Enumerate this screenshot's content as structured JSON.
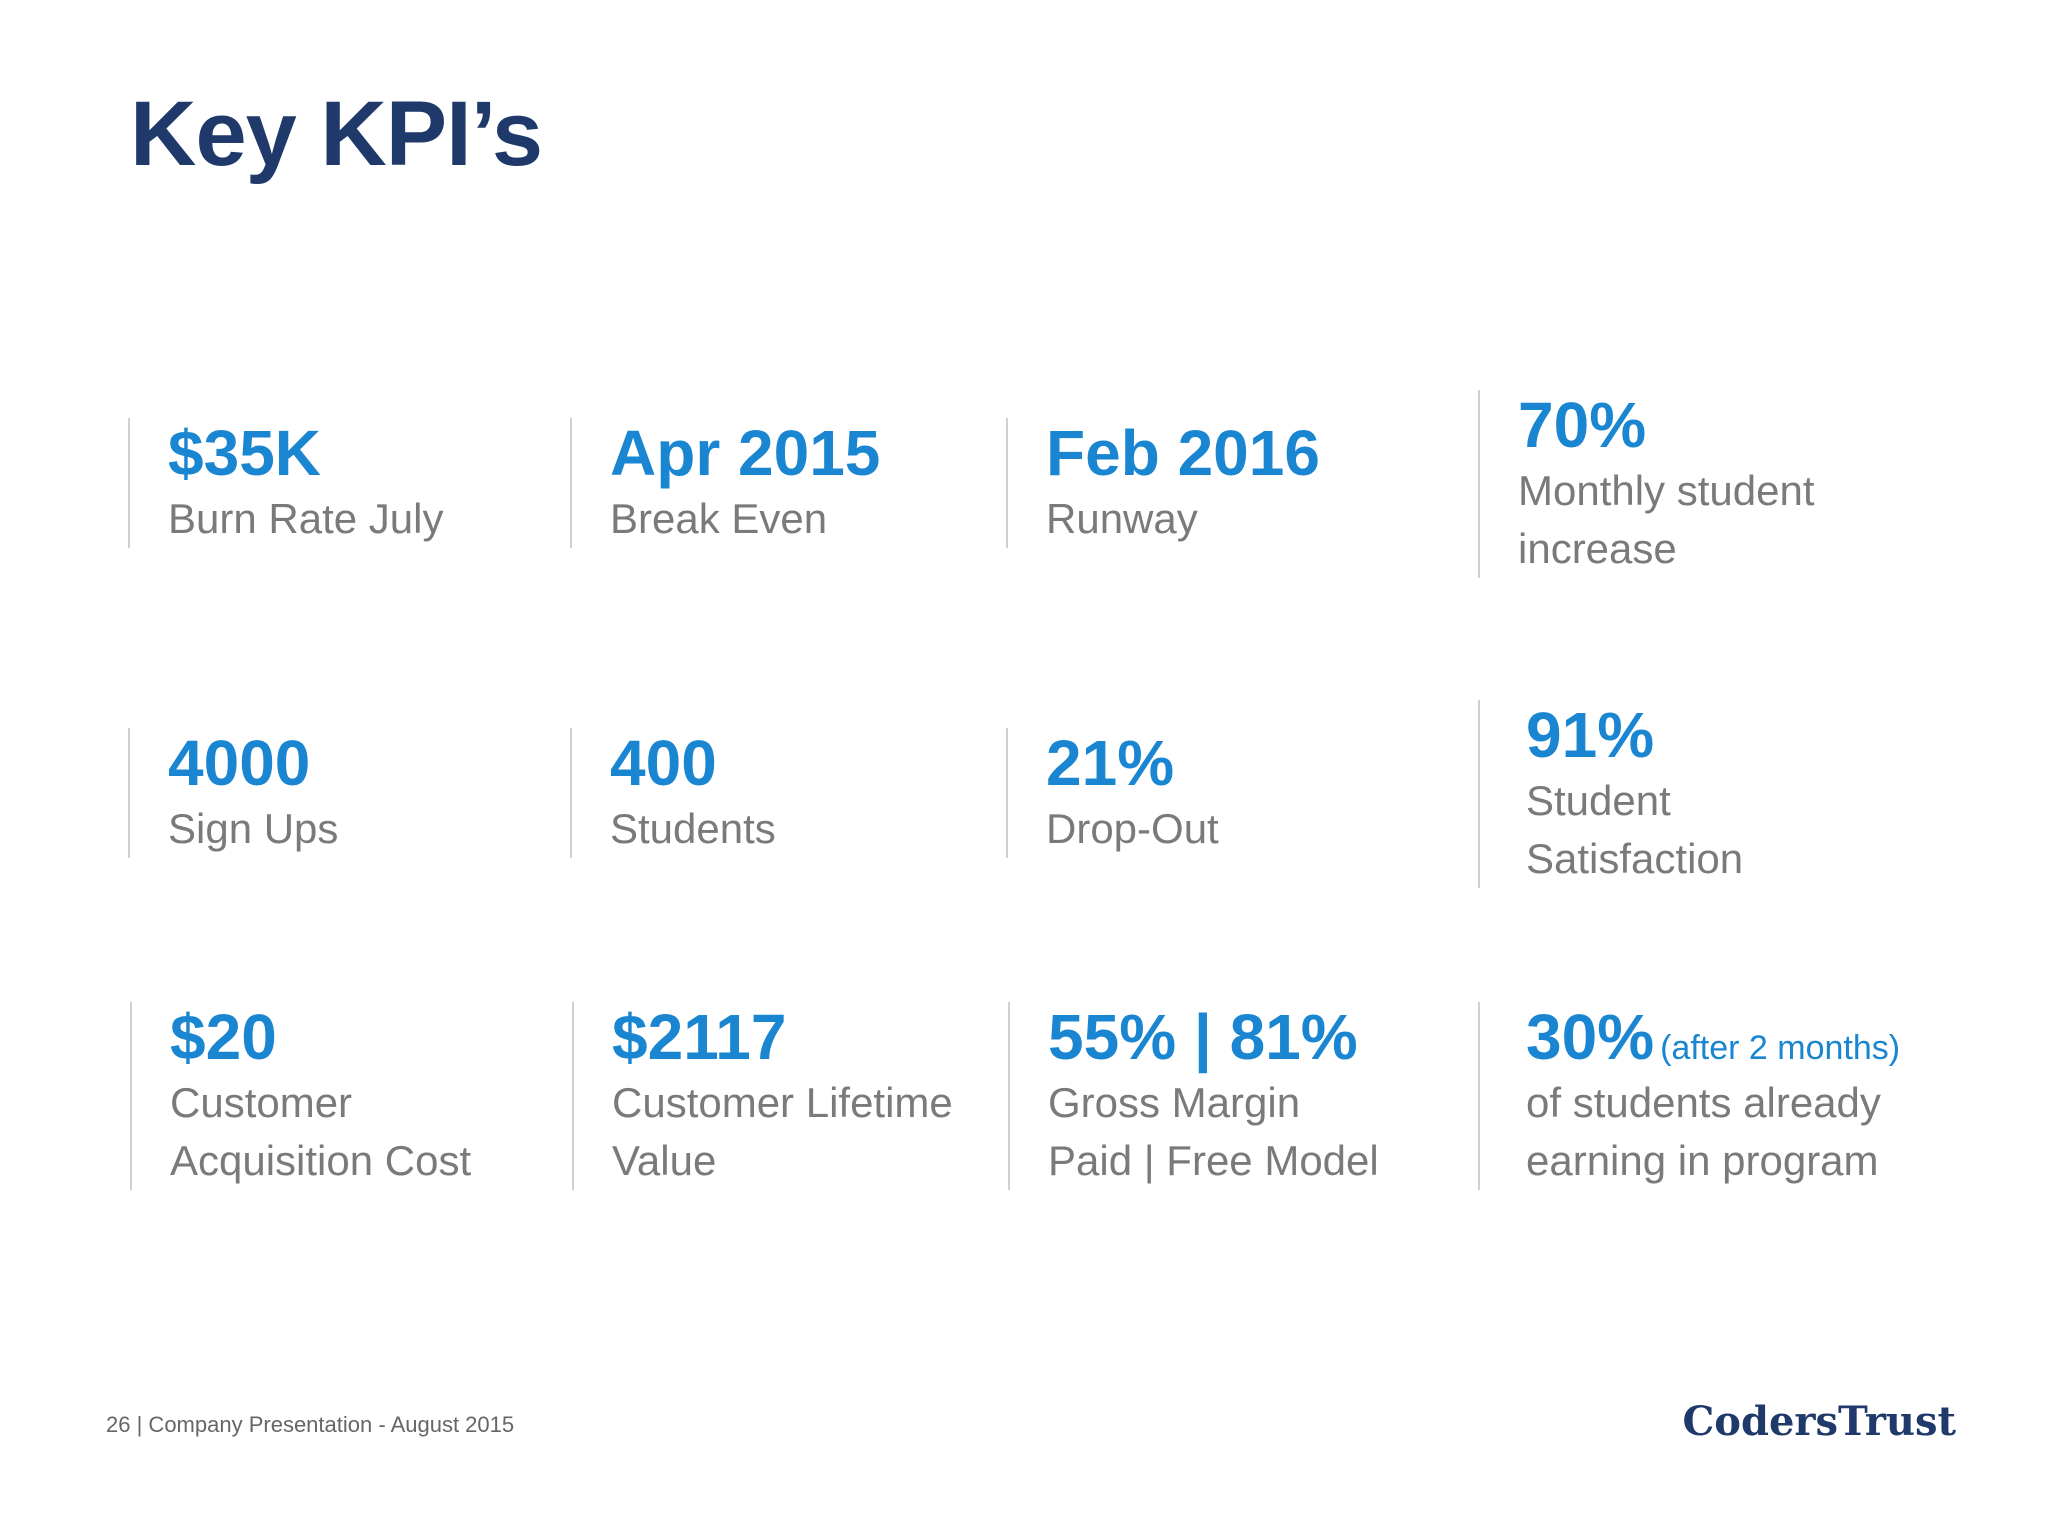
{
  "slide": {
    "title": "Key KPI’s"
  },
  "kpis": [
    {
      "value": "$35K",
      "label": "Burn Rate July"
    },
    {
      "value": "Apr 2015",
      "label": "Break Even"
    },
    {
      "value": "Feb 2016",
      "label": "Runway"
    },
    {
      "value": "70%",
      "label": "Monthly student increase"
    },
    {
      "value": "4000",
      "label": "Sign Ups"
    },
    {
      "value": "400",
      "label": "Students"
    },
    {
      "value": "21%",
      "label": "Drop-Out"
    },
    {
      "value": "91%",
      "label": "Student Satisfaction"
    },
    {
      "value": "$20",
      "label": "Customer Acquisition Cost"
    },
    {
      "value": "$2117",
      "label": "Customer Lifetime Value"
    },
    {
      "value": "55% | 81%",
      "label_line1": "Gross Margin",
      "label_line2": "Paid | Free Model"
    },
    {
      "value": "30%",
      "note": "(after 2 months)",
      "label": "of students already earning in program"
    }
  ],
  "footer": {
    "page_number": "26",
    "presentation": "| Company Presentation - August 2015",
    "logo_text": "CodersTrust"
  },
  "colors": {
    "title": "#1f3a6a",
    "accent": "#1a85d0",
    "label": "#7a7a7a",
    "divider": "#cfcfcf"
  }
}
